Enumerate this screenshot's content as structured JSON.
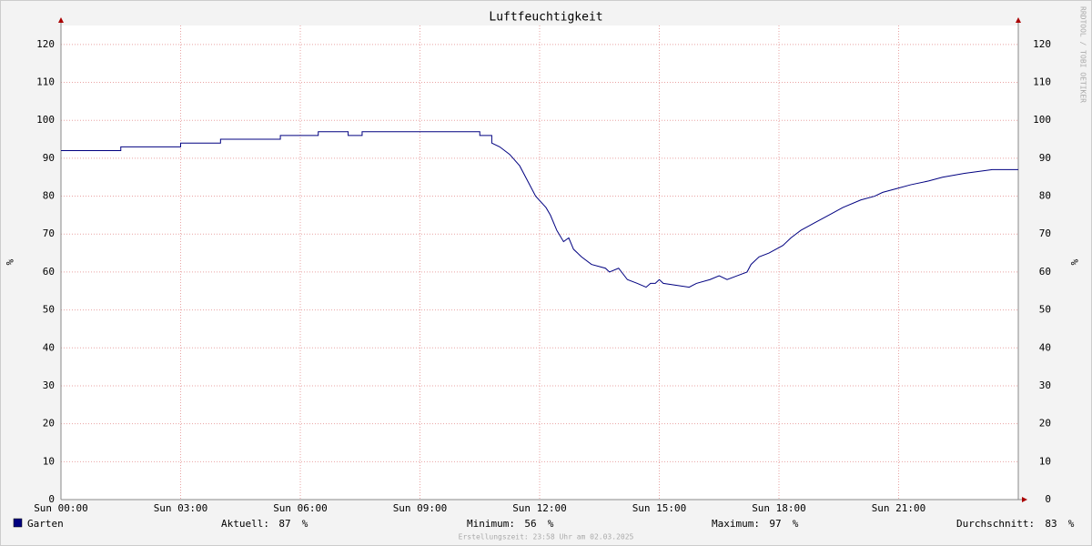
{
  "chart_data": {
    "type": "line",
    "title": "Luftfeuchtigkeit",
    "y_label": "%",
    "y2_label": "%",
    "watermark": "RRDTOOL / TOBI OETIKER",
    "footer": "Erstellungszeit: 23:58 Uhr am 02.03.2025",
    "xlim": [
      0,
      24
    ],
    "xticks": [
      {
        "value": 0,
        "label": "Sun 00:00"
      },
      {
        "value": 3,
        "label": "Sun 03:00"
      },
      {
        "value": 6,
        "label": "Sun 06:00"
      },
      {
        "value": 9,
        "label": "Sun 09:00"
      },
      {
        "value": 12,
        "label": "Sun 12:00"
      },
      {
        "value": 15,
        "label": "Sun 15:00"
      },
      {
        "value": 18,
        "label": "Sun 18:00"
      },
      {
        "value": 21,
        "label": "Sun 21:00"
      }
    ],
    "ylim": [
      0,
      125
    ],
    "yticks": [
      0,
      10,
      20,
      30,
      40,
      50,
      60,
      70,
      80,
      90,
      100,
      110,
      120
    ],
    "grid": true,
    "series": [
      {
        "name": "Garten",
        "color": "#000080",
        "x": [
          0,
          1.5,
          1.5,
          3,
          3,
          4.0,
          4.0,
          5.5,
          5.5,
          6.45,
          6.45,
          7.2,
          7.2,
          7.55,
          7.55,
          10.5,
          10.5,
          10.8,
          10.8,
          11.0,
          11.25,
          11.5,
          11.7,
          11.9,
          12.16,
          12.27,
          12.43,
          12.6,
          12.73,
          12.85,
          13.05,
          13.3,
          13.65,
          13.75,
          13.98,
          14.2,
          14.45,
          14.67,
          14.78,
          14.9,
          15.0,
          15.1,
          15.75,
          15.93,
          16.27,
          16.5,
          16.7,
          16.95,
          17.2,
          17.3,
          17.5,
          17.75,
          18.1,
          18.3,
          18.55,
          18.9,
          19.25,
          19.6,
          20.05,
          20.4,
          20.6,
          20.95,
          21.3,
          21.75,
          22.1,
          22.65,
          23.35,
          24
        ],
        "values": [
          92,
          92,
          93,
          93,
          94,
          94,
          95,
          95,
          96,
          96,
          97,
          97,
          96,
          96,
          97,
          97,
          96,
          96,
          94,
          93,
          91,
          88,
          84,
          80,
          77,
          75,
          71,
          68,
          69,
          66,
          64,
          62,
          61,
          60,
          61,
          58,
          57,
          56,
          57,
          57,
          58,
          57,
          56,
          57,
          58,
          59,
          58,
          59,
          60,
          62,
          64,
          65,
          67,
          69,
          71,
          73,
          75,
          77,
          79,
          80,
          81,
          82,
          83,
          84,
          85,
          86,
          87,
          87
        ]
      }
    ],
    "legend_stats": [
      {
        "label": "Aktuell:",
        "value": 87,
        "unit": "%"
      },
      {
        "label": "Minimum:",
        "value": 56,
        "unit": "%"
      },
      {
        "label": "Maximum:",
        "value": 97,
        "unit": "%"
      },
      {
        "label": "Durchschnitt:",
        "value": 83,
        "unit": "%"
      }
    ]
  }
}
